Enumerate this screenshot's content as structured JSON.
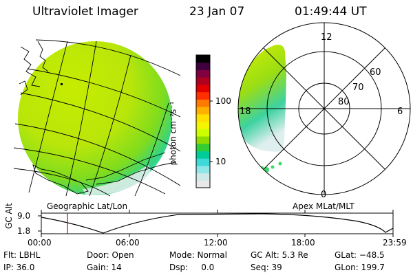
{
  "header": {
    "instrument": "Ultraviolet Imager",
    "date": "23 Jan 07",
    "time": "01:49:44 UT"
  },
  "colorbar": {
    "unit_label": "photon cm⁻²s⁻¹",
    "tick_100": "100",
    "tick_10": "10",
    "colors": [
      "#e8e8e8",
      "#cfe8e8",
      "#8ee6e6",
      "#3fd9d9",
      "#00cc99",
      "#33cc33",
      "#8fdc00",
      "#ccff00",
      "#f5f500",
      "#ffe000",
      "#ffb000",
      "#ff7a00",
      "#ff3000",
      "#e00000",
      "#b00020",
      "#800040",
      "#400040",
      "#000000"
    ]
  },
  "left_panel": {
    "label": "Geographic Lat/Lon"
  },
  "right_panel": {
    "label": "Apex MLat/MLT",
    "mlt_labels": {
      "top": "12",
      "left": "18",
      "right": "6",
      "bottom": "0"
    },
    "mlat_labels": [
      "60",
      "70",
      "80"
    ]
  },
  "timeline": {
    "y_label": "GC Alt",
    "y_ticks": [
      "9.0",
      "1.8"
    ],
    "x_ticks": [
      "00:00",
      "06:00",
      "12:00",
      "18:00",
      "23:59"
    ],
    "marker_color": "#cc0000"
  },
  "status": {
    "filter": "Flt: LBHL",
    "ip": "IP: 36.0",
    "door": "Door: Open",
    "gain": "Gain: 14",
    "mode": "Mode: Normal",
    "dsp": "Dsp:     0.0",
    "gc_alt": "GC Alt: 5.3 Re",
    "seq": "Seq: 39",
    "glat": "GLat: −48.5",
    "glon": "GLon: 199.7"
  }
}
